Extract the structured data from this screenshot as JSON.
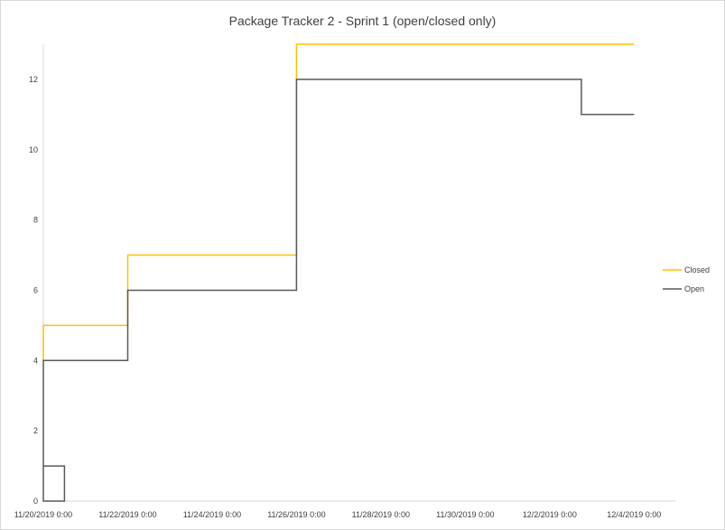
{
  "chart_data": {
    "type": "line",
    "title": "Package Tracker 2 - Sprint 1 (open/closed only)",
    "xlabel": "",
    "ylabel": "",
    "ylim": [
      0,
      13
    ],
    "y_ticks": [
      0,
      2,
      4,
      6,
      8,
      10,
      12
    ],
    "xlim": [
      "11/20/2019 0:00",
      "12/5/2019 0:00"
    ],
    "x_ticks": [
      "11/20/2019 0:00",
      "11/22/2019 0:00",
      "11/24/2019 0:00",
      "11/26/2019 0:00",
      "11/28/2019 0:00",
      "11/30/2019 0:00",
      "12/2/2019 0:00",
      "12/4/2019 0:00"
    ],
    "grid": false,
    "legend_position": "right",
    "series": [
      {
        "name": "Closed",
        "color": "#FFC000",
        "points": [
          {
            "x": "11/20/2019 0:00",
            "y": 4
          },
          {
            "x": "11/20/2019 0:00",
            "y": 5
          },
          {
            "x": "11/22/2019 0:00",
            "y": 5
          },
          {
            "x": "11/22/2019 0:00",
            "y": 7
          },
          {
            "x": "11/26/2019 0:00",
            "y": 7
          },
          {
            "x": "11/26/2019 0:00",
            "y": 13
          },
          {
            "x": "12/4/2019 0:00",
            "y": 13
          }
        ]
      },
      {
        "name": "Open",
        "color": "#595959",
        "points": [
          {
            "x": "11/20/2019 0:00",
            "y": 1
          },
          {
            "x": "11/20/2019 12:00",
            "y": 1
          },
          {
            "x": "11/20/2019 12:00",
            "y": 0
          },
          {
            "x": "11/20/2019 0:00",
            "y": 0
          },
          {
            "x": "11/20/2019 0:00",
            "y": 4
          },
          {
            "x": "11/22/2019 0:00",
            "y": 4
          },
          {
            "x": "11/22/2019 0:00",
            "y": 6
          },
          {
            "x": "11/26/2019 0:00",
            "y": 6
          },
          {
            "x": "11/26/2019 0:00",
            "y": 12
          },
          {
            "x": "12/2/2019 18:00",
            "y": 12
          },
          {
            "x": "12/2/2019 18:00",
            "y": 11
          },
          {
            "x": "12/4/2019 0:00",
            "y": 11
          }
        ]
      }
    ]
  }
}
